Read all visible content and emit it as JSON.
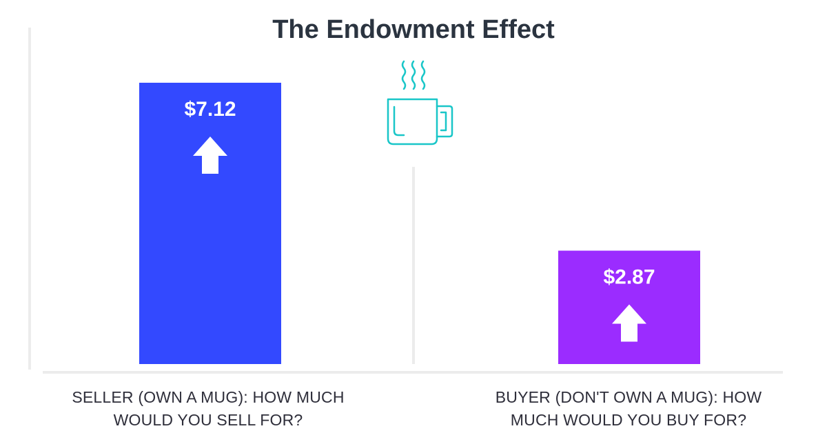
{
  "chart_data": {
    "type": "bar",
    "title": "The Endowment Effect",
    "categories": [
      "SELLER (OWN A MUG): HOW MUCH\nWOULD YOU SELL FOR?",
      "BUYER (DON'T OWN A MUG): HOW\nMUCH WOULD YOU BUY FOR?"
    ],
    "values": [
      7.12,
      2.87
    ],
    "data_labels": [
      "$7.12",
      "$2.87"
    ],
    "bar_colors": [
      "#3349ff",
      "#9b2cff"
    ],
    "ylim": [
      0,
      7.12
    ],
    "xlabel": "",
    "ylabel": "",
    "grid": false,
    "legend": "none",
    "annotations": [
      {
        "type": "icon",
        "name": "arrow-up-icon",
        "color": "#ffffff"
      },
      {
        "type": "icon",
        "name": "steaming-mug-icon",
        "color": "#19c6c8"
      }
    ]
  }
}
